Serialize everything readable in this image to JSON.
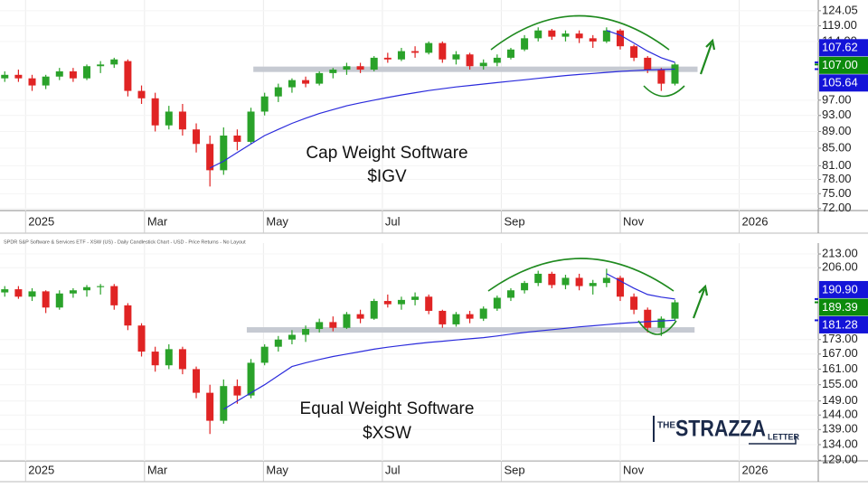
{
  "chart_data": [
    {
      "type": "candlestick",
      "annotation": [
        "Cap Weight Software",
        "$IGV"
      ],
      "log_scale": true,
      "grid": true,
      "up_color": "#2aa22a",
      "down_color": "#e02424",
      "xlim": [
        -0.43,
        13.33
      ],
      "xticks": [
        {
          "value": 0,
          "label": "2025"
        },
        {
          "value": 2,
          "label": "Mar"
        },
        {
          "value": 4,
          "label": "May"
        },
        {
          "value": 6,
          "label": "Jul"
        },
        {
          "value": 8,
          "label": "Sep"
        },
        {
          "value": 10,
          "label": "Nov"
        },
        {
          "value": 12,
          "label": "2026"
        }
      ],
      "ylim": [
        71.6,
        126.5
      ],
      "yticks": [
        {
          "value": 124.05,
          "label": "124.05"
        },
        {
          "value": 119,
          "label": "119.00"
        },
        {
          "value": 114,
          "label": "114.00"
        },
        {
          "value": 97,
          "label": "97.00"
        },
        {
          "value": 93,
          "label": "93.00"
        },
        {
          "value": 89,
          "label": "89.00"
        },
        {
          "value": 85,
          "label": "85.00"
        },
        {
          "value": 81,
          "label": "81.00"
        },
        {
          "value": 78,
          "label": "78.00"
        },
        {
          "value": 75,
          "label": "75.00"
        },
        {
          "value": 72,
          "label": "72.00"
        }
      ],
      "x": [
        -0.35,
        -0.12,
        0.11,
        0.34,
        0.57,
        0.8,
        1.03,
        1.26,
        1.49,
        1.72,
        1.95,
        2.18,
        2.41,
        2.64,
        2.87,
        3.1,
        3.33,
        3.56,
        3.79,
        4.02,
        4.25,
        4.48,
        4.71,
        4.94,
        5.17,
        5.4,
        5.63,
        5.86,
        6.09,
        6.32,
        6.55,
        6.78,
        7.01,
        7.24,
        7.47,
        7.7,
        7.93,
        8.16,
        8.39,
        8.62,
        8.85,
        9.08,
        9.31,
        9.54,
        9.77,
        10,
        10.23,
        10.46,
        10.69,
        10.92
      ],
      "open": [
        103,
        104,
        103,
        101,
        103.5,
        105,
        103,
        106.5,
        107,
        108,
        99.5,
        97.5,
        90.5,
        94,
        89.5,
        86,
        80,
        88,
        86.5,
        94,
        98,
        100.5,
        102.5,
        101.5,
        104.5,
        105.5,
        106.5,
        105.5,
        109,
        108.5,
        111,
        110.5,
        113.5,
        108.5,
        110,
        106.5,
        107.5,
        109,
        111.5,
        115,
        117.5,
        115.5,
        116.5,
        115,
        114,
        117.5,
        112.5,
        109,
        105.5,
        101.5
      ],
      "high": [
        105,
        105.5,
        104,
        104,
        106,
        106,
        107,
        108,
        109,
        108.5,
        101,
        99,
        95.5,
        96,
        91,
        88,
        90,
        89.5,
        95,
        99,
        101.5,
        103,
        103.5,
        105,
        106,
        107.5,
        107.5,
        109.5,
        110.5,
        112,
        112.5,
        114,
        114,
        111,
        110.5,
        108.5,
        110,
        112,
        116,
        118.5,
        118,
        117.5,
        117.5,
        116,
        118.5,
        118,
        113,
        109.5,
        106,
        107.5
      ],
      "low": [
        102,
        102,
        99.5,
        100,
        102.5,
        102,
        102.5,
        104.5,
        106,
        98,
        96,
        89,
        89.5,
        88,
        84,
        76.5,
        79,
        84.5,
        86,
        93,
        96.5,
        99,
        100.5,
        101,
        103,
        104,
        104.5,
        105,
        107.5,
        108,
        109,
        110,
        107.5,
        107,
        105.5,
        105.5,
        106.5,
        108.5,
        111,
        114,
        114.5,
        114,
        113.5,
        112,
        113.5,
        111.5,
        108,
        104.5,
        99.5,
        101
      ],
      "close": [
        104,
        103,
        101,
        103.5,
        105,
        103,
        106.5,
        107,
        108.5,
        99.5,
        97.5,
        90.5,
        94,
        89.5,
        86,
        80,
        88,
        86.5,
        94,
        98,
        100.5,
        102.5,
        101.5,
        104.5,
        105.5,
        106.5,
        105.5,
        109,
        108.5,
        111,
        110.5,
        113.5,
        108.5,
        110,
        106.5,
        107.5,
        109,
        111.5,
        115,
        117.5,
        115.5,
        116.5,
        115,
        114,
        117.5,
        112.5,
        109,
        105.5,
        101.5,
        107
      ],
      "overlays": [
        {
          "color": "#2b2bdc",
          "values": [
            null,
            null,
            null,
            null,
            null,
            null,
            null,
            null,
            null,
            null,
            null,
            null,
            null,
            null,
            null,
            80.5,
            82,
            84,
            86,
            88,
            89.5,
            91,
            92.3,
            93.5,
            94.5,
            95.5,
            96.3,
            97,
            97.7,
            98.4,
            99,
            99.6,
            100.1,
            100.6,
            101,
            101.4,
            101.8,
            102.2,
            102.6,
            103,
            103.4,
            103.8,
            104.1,
            104.4,
            104.7,
            105,
            105.2,
            105.4,
            105.5,
            105.64
          ]
        },
        {
          "color": "#2b2bdc",
          "values": [
            null,
            null,
            null,
            null,
            null,
            null,
            null,
            null,
            null,
            null,
            null,
            null,
            null,
            null,
            null,
            null,
            null,
            null,
            null,
            null,
            null,
            null,
            null,
            null,
            null,
            null,
            null,
            null,
            null,
            null,
            null,
            null,
            null,
            null,
            null,
            null,
            null,
            null,
            null,
            null,
            null,
            null,
            null,
            null,
            117.5,
            116,
            113.5,
            111,
            109,
            107.62
          ]
        }
      ],
      "support": {
        "value": 105.6,
        "color": "#c6cad2",
        "xlim": [
          3.83,
          11.3
        ]
      },
      "price_labels": [
        {
          "value": 107.62,
          "color": "#1414d8"
        },
        {
          "value": 107,
          "label": "107.00",
          "color": "#0c8a0c"
        },
        {
          "value": 105.64,
          "color": "#1414d8"
        }
      ]
    },
    {
      "type": "candlestick",
      "header": "SPDR S&P Software & Services ETF - XSW (US) - Daily Candlestick Chart - USD - Price Returns - No Layout",
      "annotation": [
        "Equal Weight Software",
        "$XSW"
      ],
      "log_scale": true,
      "grid": true,
      "up_color": "#2aa22a",
      "down_color": "#e02424",
      "xlim": [
        -0.43,
        13.33
      ],
      "xticks": [
        {
          "value": 0,
          "label": "2025"
        },
        {
          "value": 2,
          "label": "Mar"
        },
        {
          "value": 4,
          "label": "May"
        },
        {
          "value": 6,
          "label": "Jul"
        },
        {
          "value": 8,
          "label": "Sep"
        },
        {
          "value": 10,
          "label": "Nov"
        },
        {
          "value": 12,
          "label": "2026"
        }
      ],
      "ylim": [
        128.8,
        216.8
      ],
      "yticks": [
        {
          "value": 213,
          "label": "213.00"
        },
        {
          "value": 206,
          "label": "206.00"
        },
        {
          "value": 173,
          "label": "173.00"
        },
        {
          "value": 167,
          "label": "167.00"
        },
        {
          "value": 161,
          "label": "161.00"
        },
        {
          "value": 155,
          "label": "155.00"
        },
        {
          "value": 149,
          "label": "149.00"
        },
        {
          "value": 144,
          "label": "144.00"
        },
        {
          "value": 139,
          "label": "139.00"
        },
        {
          "value": 134,
          "label": "134.00"
        },
        {
          "value": 129,
          "label": "129.00"
        }
      ],
      "x": [
        -0.35,
        -0.12,
        0.11,
        0.34,
        0.57,
        0.8,
        1.03,
        1.26,
        1.49,
        1.72,
        1.95,
        2.18,
        2.41,
        2.64,
        2.87,
        3.1,
        3.33,
        3.56,
        3.79,
        4.02,
        4.25,
        4.48,
        4.71,
        4.94,
        5.17,
        5.4,
        5.63,
        5.86,
        6.09,
        6.32,
        6.55,
        6.78,
        7.01,
        7.24,
        7.47,
        7.7,
        7.93,
        8.16,
        8.39,
        8.62,
        8.85,
        9.08,
        9.31,
        9.54,
        9.77,
        10,
        10.23,
        10.46,
        10.69,
        10.92
      ],
      "open": [
        194,
        195.5,
        192,
        194.5,
        187,
        193.5,
        195,
        196.5,
        197,
        188,
        179,
        168,
        162.5,
        169,
        161,
        152,
        142,
        154.5,
        151,
        163.5,
        170,
        173,
        175,
        177.5,
        180.5,
        178,
        184,
        182,
        190,
        188.5,
        190.5,
        192,
        185.5,
        179.5,
        184,
        182,
        186.5,
        191.5,
        195,
        198.5,
        203,
        197.5,
        201,
        197,
        198.5,
        201,
        192,
        186,
        178,
        182
      ],
      "high": [
        197,
        197,
        196,
        195,
        195,
        196,
        197.5,
        198,
        198,
        189,
        180,
        170,
        171,
        170,
        162,
        155,
        157,
        157,
        165,
        171,
        174.5,
        177,
        179,
        182,
        183,
        185,
        186,
        191,
        193,
        192,
        194,
        193,
        186,
        185,
        185.5,
        187.5,
        192.5,
        196,
        199.5,
        204.5,
        204,
        202.5,
        203,
        200,
        205.5,
        202,
        193.5,
        187,
        183,
        190.5
      ],
      "low": [
        192,
        191,
        190,
        184.5,
        186,
        191.5,
        192,
        193,
        186,
        177,
        166,
        160,
        161,
        159,
        150,
        137.5,
        141,
        148,
        150,
        162.5,
        168,
        171,
        172,
        176,
        176.5,
        177.5,
        180,
        181.5,
        187,
        186,
        188,
        184,
        178,
        178.5,
        180,
        181,
        185.5,
        190,
        193.5,
        197,
        196,
        195.5,
        195,
        193,
        196.5,
        190,
        184,
        176,
        174.5,
        181
      ],
      "close": [
        195.5,
        192,
        194.5,
        187,
        193.5,
        195,
        196.5,
        197,
        188,
        179,
        168,
        162.5,
        169,
        161,
        152,
        142,
        154.5,
        151,
        163.5,
        170,
        173,
        175,
        177.5,
        180.5,
        178,
        184,
        182,
        190,
        188.5,
        190.5,
        192,
        185.5,
        179.5,
        184,
        182,
        186.5,
        191.5,
        195,
        198.5,
        203,
        197.5,
        201,
        197,
        198.5,
        201,
        192,
        186,
        178,
        182,
        189.39
      ],
      "overlays": [
        {
          "color": "#2b2bdc",
          "values": [
            null,
            null,
            null,
            null,
            null,
            null,
            null,
            null,
            null,
            null,
            null,
            null,
            null,
            null,
            null,
            null,
            146,
            149,
            152,
            155,
            158.5,
            162,
            163.5,
            164.8,
            166,
            167,
            168,
            169,
            169.8,
            170.5,
            171.2,
            171.8,
            172.3,
            172.8,
            173.3,
            173.8,
            174.5,
            175.3,
            176,
            176.6,
            177.2,
            177.8,
            178.4,
            178.9,
            179.4,
            179.9,
            180.3,
            180.7,
            181,
            181.28
          ]
        },
        {
          "color": "#2b2bdc",
          "values": [
            null,
            null,
            null,
            null,
            null,
            null,
            null,
            null,
            null,
            null,
            null,
            null,
            null,
            null,
            null,
            null,
            null,
            null,
            null,
            null,
            null,
            null,
            null,
            null,
            null,
            null,
            null,
            null,
            null,
            null,
            null,
            null,
            null,
            null,
            null,
            null,
            null,
            null,
            null,
            null,
            null,
            null,
            null,
            null,
            203,
            199.5,
            196,
            193,
            191.8,
            190.9
          ]
        }
      ],
      "support": {
        "value": 177.1,
        "color": "#c6cad2",
        "xlim": [
          3.72,
          11.25
        ]
      },
      "price_labels": [
        {
          "value": 190.9,
          "label": "190.90",
          "color": "#1414d8"
        },
        {
          "value": 189.39,
          "color": "#0c8a0c"
        },
        {
          "value": 181.28,
          "color": "#1414d8"
        }
      ]
    }
  ],
  "logo": {
    "prefix": "THE",
    "name": "STRAZZA",
    "suffix": "LETTER"
  }
}
